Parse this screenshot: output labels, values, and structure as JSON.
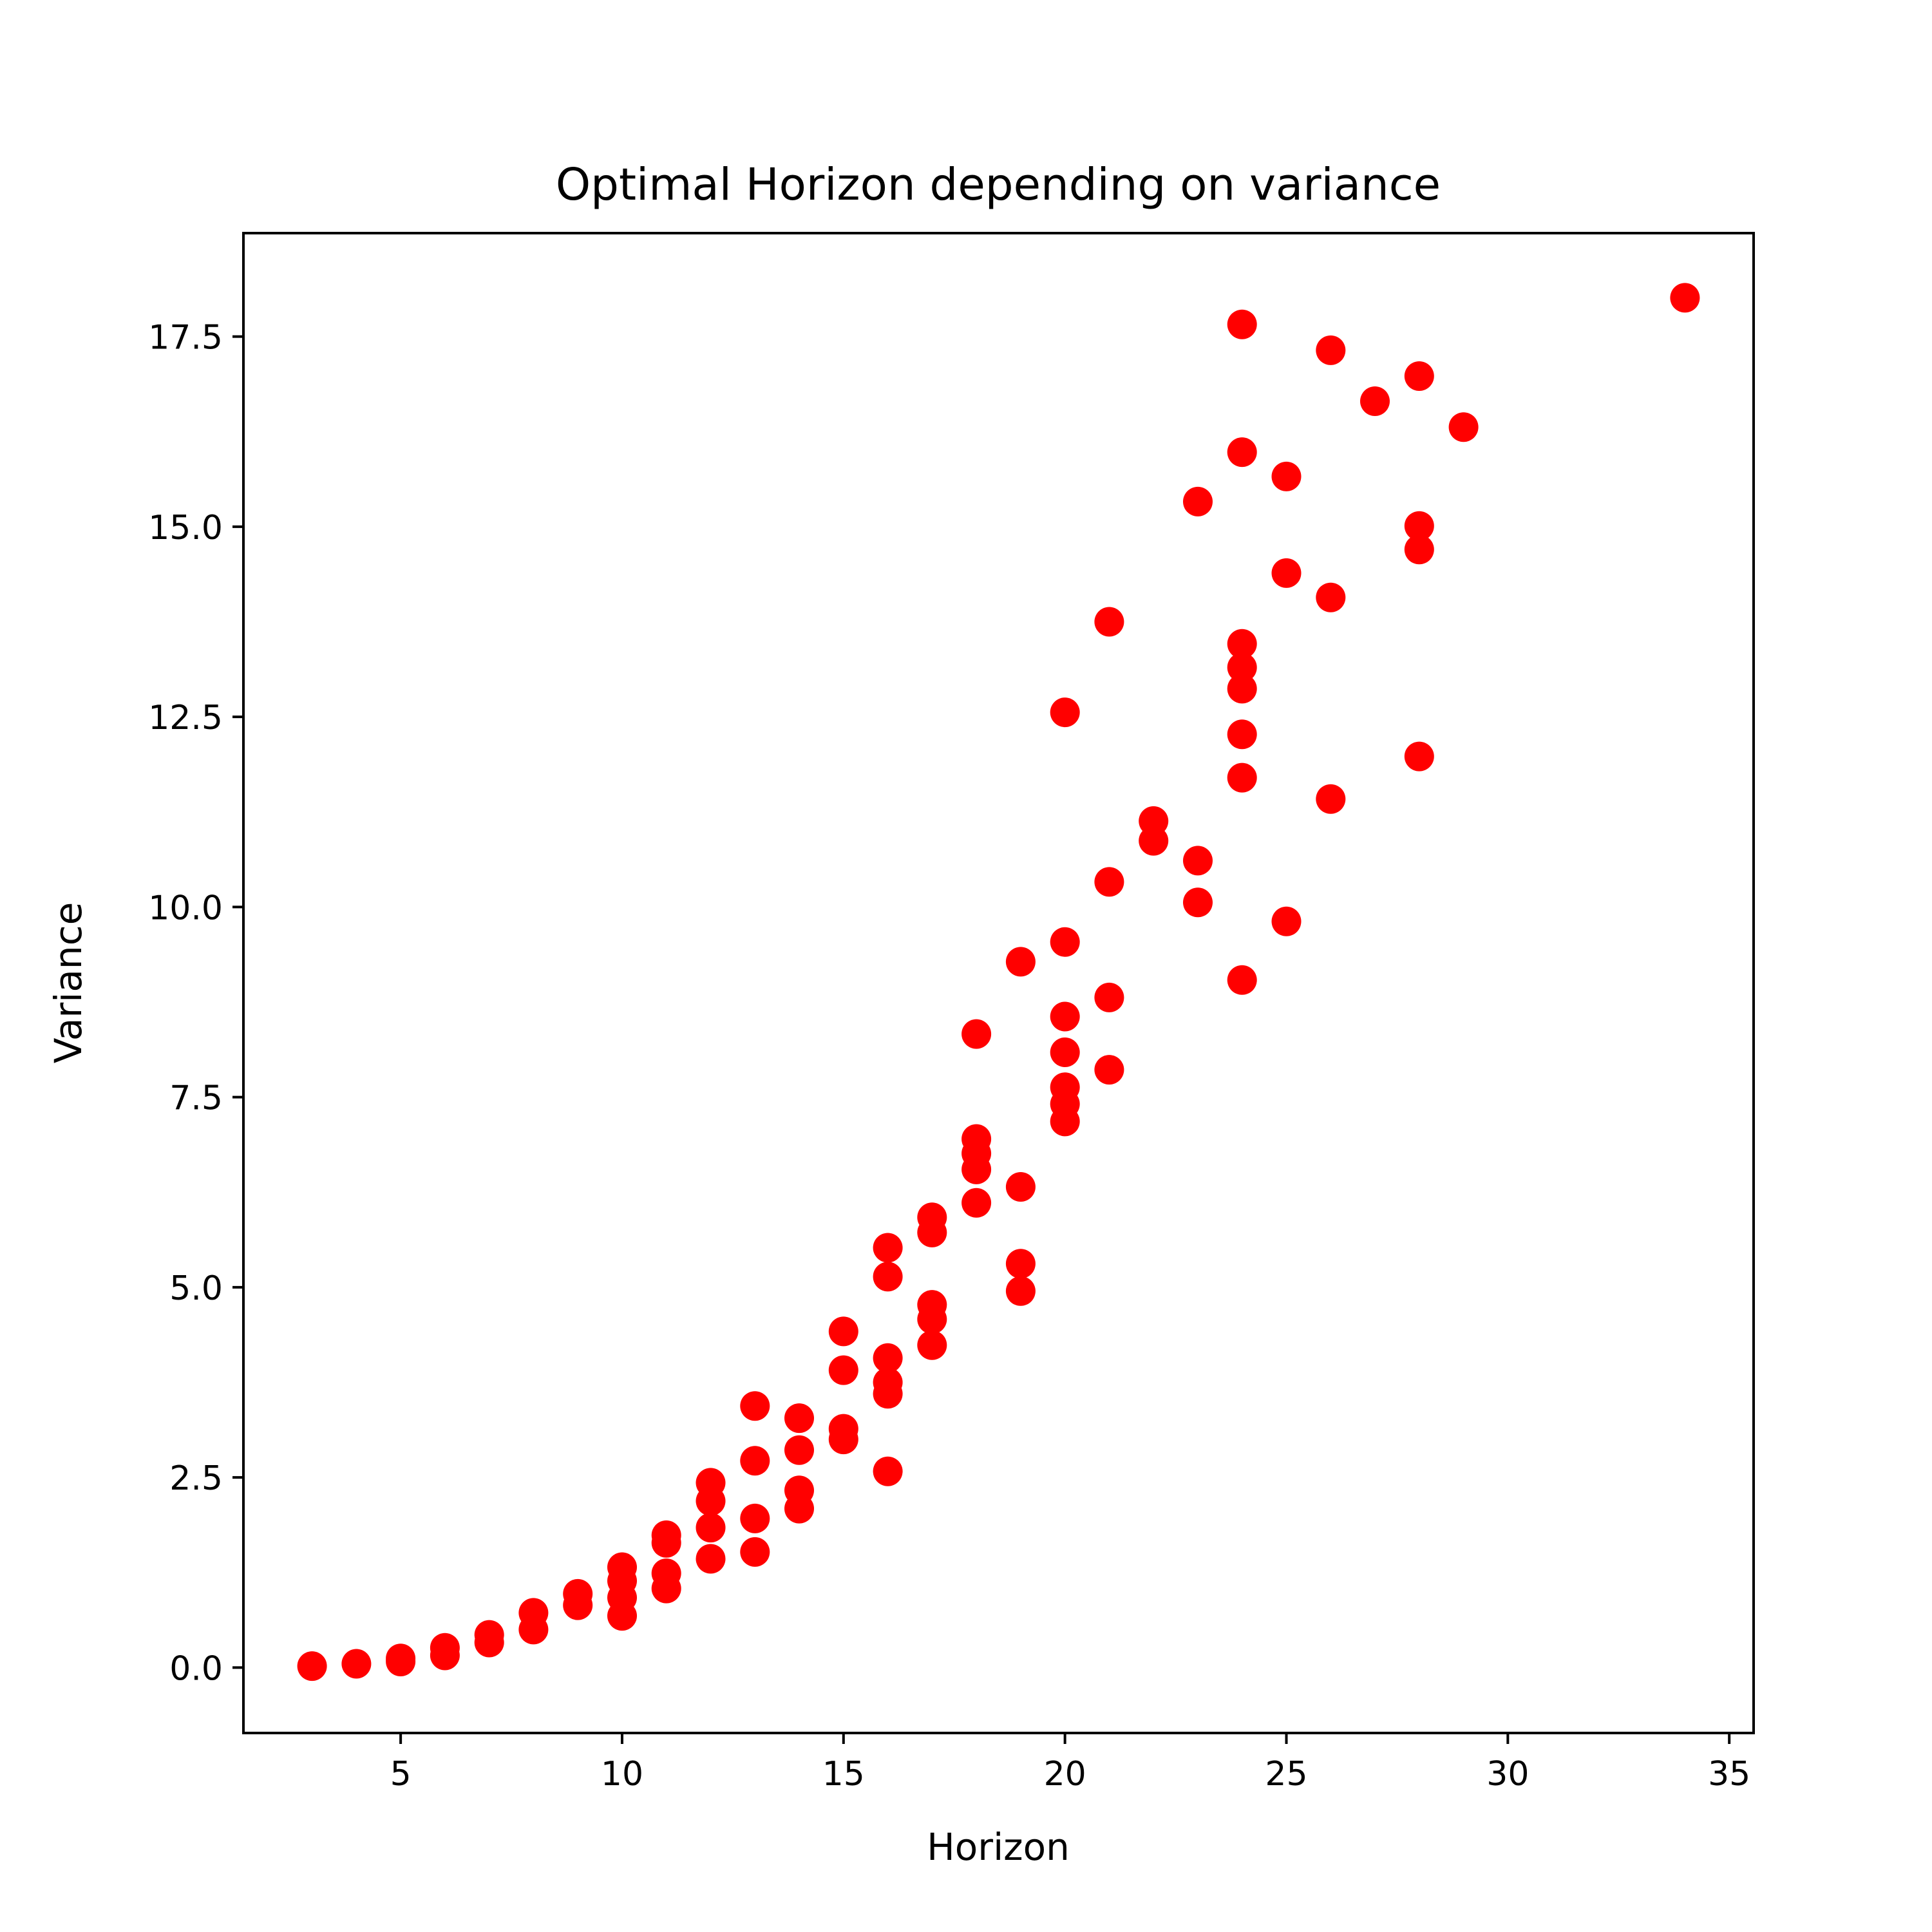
{
  "chart_data": {
    "type": "scatter",
    "title": "Optimal Horizon depending on variance",
    "xlabel": "Horizon",
    "ylabel": "Variance",
    "xlim": [
      1.45,
      35.55
    ],
    "ylim": [
      -0.86,
      18.86
    ],
    "xticks": [
      5,
      10,
      15,
      20,
      25,
      30,
      35
    ],
    "xtick_labels": [
      "5",
      "10",
      "15",
      "20",
      "25",
      "30",
      "35"
    ],
    "yticks": [
      0.0,
      2.5,
      5.0,
      7.5,
      10.0,
      12.5,
      15.0,
      17.5
    ],
    "ytick_labels": [
      "0.0",
      "2.5",
      "5.0",
      "7.5",
      "10.0",
      "12.5",
      "15.0",
      "17.5"
    ],
    "grid": false,
    "marker_color": "#ff0000",
    "points": [
      [
        3,
        0.02
      ],
      [
        4,
        0.05
      ],
      [
        5,
        0.08
      ],
      [
        5,
        0.12
      ],
      [
        6,
        0.16
      ],
      [
        6,
        0.26
      ],
      [
        7,
        0.33
      ],
      [
        7,
        0.43
      ],
      [
        8,
        0.5
      ],
      [
        8,
        0.72
      ],
      [
        9,
        0.82
      ],
      [
        9,
        0.97
      ],
      [
        10,
        0.68
      ],
      [
        10,
        0.92
      ],
      [
        10,
        1.14
      ],
      [
        10,
        1.32
      ],
      [
        11,
        1.04
      ],
      [
        11,
        1.24
      ],
      [
        11,
        1.64
      ],
      [
        11,
        1.74
      ],
      [
        12,
        1.43
      ],
      [
        12,
        1.84
      ],
      [
        12,
        2.19
      ],
      [
        12,
        2.43
      ],
      [
        13,
        1.52
      ],
      [
        13,
        1.96
      ],
      [
        13,
        2.72
      ],
      [
        13,
        3.44
      ],
      [
        14,
        2.09
      ],
      [
        14,
        2.33
      ],
      [
        14,
        2.86
      ],
      [
        14,
        3.28
      ],
      [
        15,
        3.0
      ],
      [
        15,
        3.14
      ],
      [
        15,
        3.91
      ],
      [
        15,
        4.42
      ],
      [
        16,
        2.58
      ],
      [
        16,
        3.6
      ],
      [
        16,
        3.75
      ],
      [
        16,
        4.07
      ],
      [
        16,
        5.14
      ],
      [
        16,
        5.52
      ],
      [
        17,
        4.24
      ],
      [
        17,
        4.58
      ],
      [
        17,
        4.77
      ],
      [
        17,
        5.72
      ],
      [
        17,
        5.92
      ],
      [
        18,
        6.11
      ],
      [
        18,
        6.55
      ],
      [
        18,
        6.76
      ],
      [
        18,
        6.95
      ],
      [
        18,
        8.33
      ],
      [
        19,
        4.95
      ],
      [
        19,
        5.31
      ],
      [
        19,
        6.32
      ],
      [
        19,
        9.28
      ],
      [
        20,
        7.18
      ],
      [
        20,
        7.41
      ],
      [
        20,
        7.63
      ],
      [
        20,
        8.09
      ],
      [
        20,
        8.56
      ],
      [
        20,
        9.54
      ],
      [
        20,
        12.56
      ],
      [
        21,
        7.86
      ],
      [
        21,
        8.81
      ],
      [
        21,
        10.33
      ],
      [
        21,
        13.75
      ],
      [
        22,
        10.87
      ],
      [
        22,
        11.13
      ],
      [
        23,
        10.06
      ],
      [
        23,
        10.61
      ],
      [
        23,
        15.33
      ],
      [
        24,
        9.04
      ],
      [
        24,
        11.7
      ],
      [
        24,
        12.27
      ],
      [
        24,
        12.87
      ],
      [
        24,
        13.15
      ],
      [
        24,
        13.46
      ],
      [
        24,
        15.98
      ],
      [
        24,
        17.66
      ],
      [
        25,
        9.81
      ],
      [
        25,
        14.39
      ],
      [
        25,
        15.66
      ],
      [
        26,
        11.42
      ],
      [
        26,
        14.07
      ],
      [
        26,
        17.32
      ],
      [
        27,
        16.65
      ],
      [
        28,
        11.98
      ],
      [
        28,
        14.7
      ],
      [
        28,
        15.01
      ],
      [
        28,
        16.98
      ],
      [
        29,
        16.31
      ],
      [
        34,
        18.01
      ]
    ]
  }
}
